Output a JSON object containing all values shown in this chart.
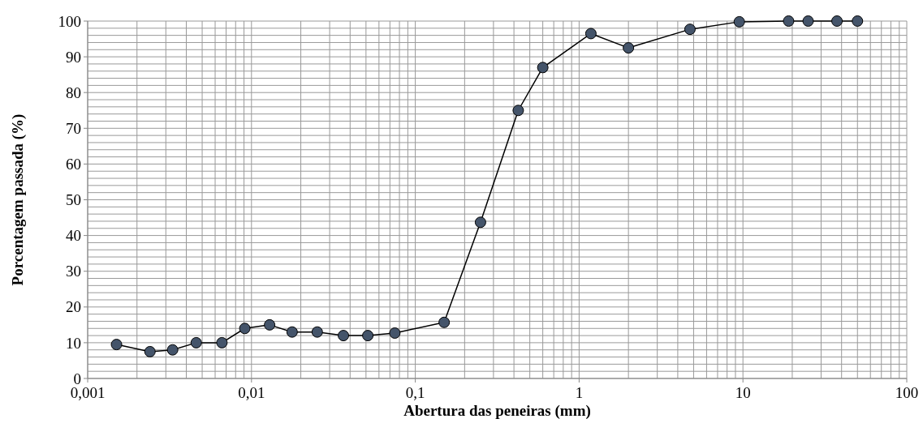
{
  "chart_data": {
    "type": "line",
    "xlabel": "Abertura das peneiras (mm)",
    "ylabel": "Porcentagem passada (%)",
    "log": "x",
    "grid": true,
    "marker": "circle",
    "line_style": "solid",
    "xlim": [
      0.001,
      100
    ],
    "xticks": [
      {
        "value": 0.001,
        "label": "0,001"
      },
      {
        "value": 0.01,
        "label": "0,01"
      },
      {
        "value": 0.1,
        "label": "0,1"
      },
      1,
      10,
      100
    ],
    "ylim": [
      0,
      100
    ],
    "yticks": [
      0,
      10,
      20,
      30,
      40,
      50,
      60,
      70,
      80,
      90,
      100
    ],
    "series": [
      {
        "color": "#44546a",
        "x": [
          0.0015,
          0.0024,
          0.0033,
          0.0046,
          0.0066,
          0.0091,
          0.0129,
          0.0177,
          0.0252,
          0.0364,
          0.0513,
          0.0713,
          0.075,
          0.15,
          0.25,
          0.425,
          0.6,
          1.18,
          2,
          4.75,
          9.5,
          19,
          25,
          37.5,
          50
        ],
        "values": [
          9.5,
          7.5,
          8,
          10,
          10,
          14,
          15,
          13,
          13,
          12,
          12,
          null,
          12.7,
          15.7,
          43.7,
          75,
          87,
          96.5,
          92.5,
          97.7,
          99.8,
          100,
          100,
          100,
          100
        ]
      }
    ]
  }
}
